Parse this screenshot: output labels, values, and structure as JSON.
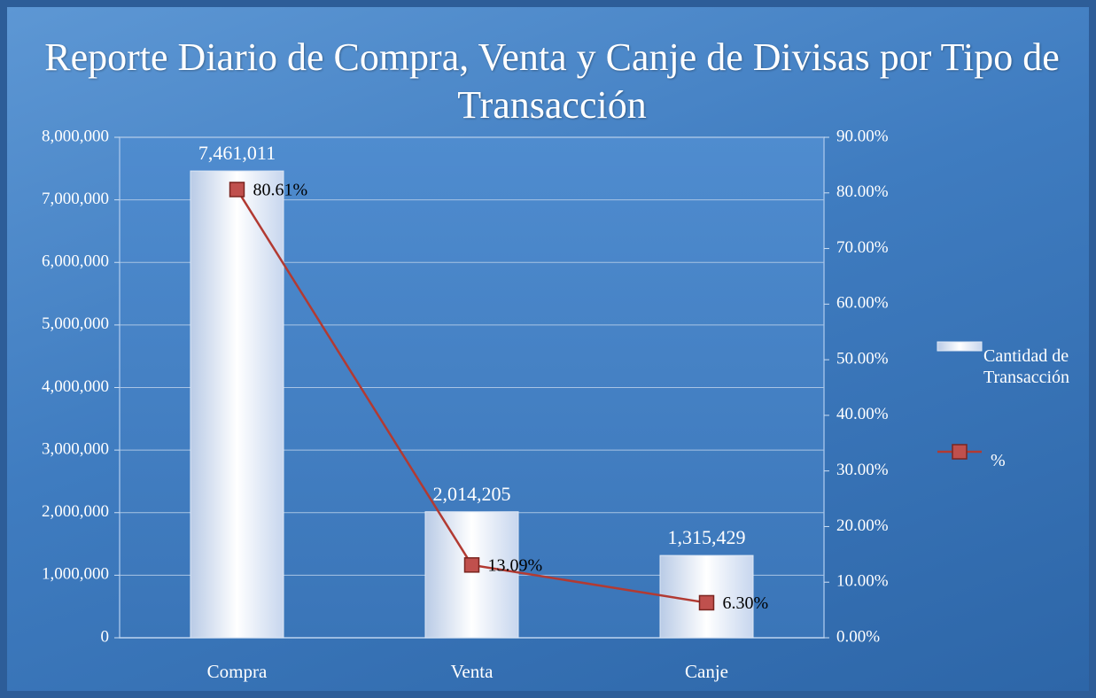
{
  "chart_data": {
    "type": "bar",
    "title": "Reporte Diario de Compra, Venta y Canje de Divisas por Tipo de Transacción",
    "categories": [
      "Compra",
      "Venta",
      "Canje"
    ],
    "series": [
      {
        "name": "Cantidad de Transacción",
        "type": "bar",
        "color": "#e8eef8",
        "values": [
          7461011,
          2014205,
          1315429
        ],
        "value_labels": [
          "7,461,011",
          "2,014,205",
          "1,315,429"
        ]
      },
      {
        "name": "%",
        "type": "line",
        "axis": "y2",
        "color": "#b23a32",
        "values": [
          80.61,
          13.09,
          6.3
        ],
        "value_labels": [
          "80.61%",
          "13.09%",
          "6.30%"
        ]
      }
    ],
    "ylim": [
      0,
      8000000
    ],
    "yticks": [
      0,
      {
        "value": 1000000,
        "label": "1,000,000"
      },
      {
        "value": 2000000,
        "label": "2,000,000"
      },
      {
        "value": 3000000,
        "label": "3,000,000"
      },
      {
        "value": 4000000,
        "label": "4,000,000"
      },
      {
        "value": 5000000,
        "label": "5,000,000"
      },
      {
        "value": 6000000,
        "label": "6,000,000"
      },
      {
        "value": 7000000,
        "label": "7,000,000"
      },
      {
        "value": 8000000,
        "label": "8,000,000"
      }
    ],
    "y2lim": [
      0,
      90
    ],
    "y2ticks": [
      {
        "value": 0,
        "label": "0.00%"
      },
      {
        "value": 10,
        "label": "10.00%"
      },
      {
        "value": 20,
        "label": "20.00%"
      },
      {
        "value": 30,
        "label": "30.00%"
      },
      {
        "value": 40,
        "label": "40.00%"
      },
      {
        "value": 50,
        "label": "50.00%"
      },
      {
        "value": 60,
        "label": "60.00%"
      },
      {
        "value": 70,
        "label": "70.00%"
      },
      {
        "value": 80,
        "label": "80.00%"
      },
      {
        "value": 90,
        "label": "90.00%"
      }
    ],
    "grid": true,
    "legend": "right"
  }
}
